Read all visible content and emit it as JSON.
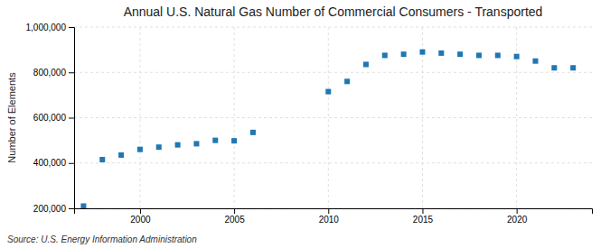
{
  "chart_data": {
    "type": "scatter",
    "title": "Annual U.S. Natural Gas Number of Commercial Consumers - Transported",
    "ylabel": "Number of Elements",
    "source": "Source: U.S. Energy Information Administration",
    "x": [
      1997,
      1998,
      1999,
      2000,
      2001,
      2002,
      2003,
      2004,
      2005,
      2006,
      2010,
      2011,
      2012,
      2013,
      2014,
      2015,
      2016,
      2017,
      2018,
      2019,
      2020,
      2021,
      2022,
      2023
    ],
    "values": [
      210000,
      415000,
      435000,
      460000,
      470000,
      480000,
      485000,
      500000,
      498000,
      535000,
      715000,
      760000,
      835000,
      875000,
      880000,
      890000,
      885000,
      880000,
      875000,
      875000,
      870000,
      850000,
      820000,
      820000
    ],
    "xlim": [
      1996.5,
      2024
    ],
    "xticks": [
      2000,
      2005,
      2010,
      2015,
      2020
    ],
    "ylim": [
      200000,
      1000000
    ],
    "yticks": [
      {
        "value": 200000,
        "label": "200,000"
      },
      {
        "value": 400000,
        "label": "400,000"
      },
      {
        "value": 600000,
        "label": "600,000"
      },
      {
        "value": 800000,
        "label": "800,000"
      },
      {
        "value": 1000000,
        "label": "1,000,000"
      }
    ],
    "grid": true,
    "marker": "square"
  }
}
